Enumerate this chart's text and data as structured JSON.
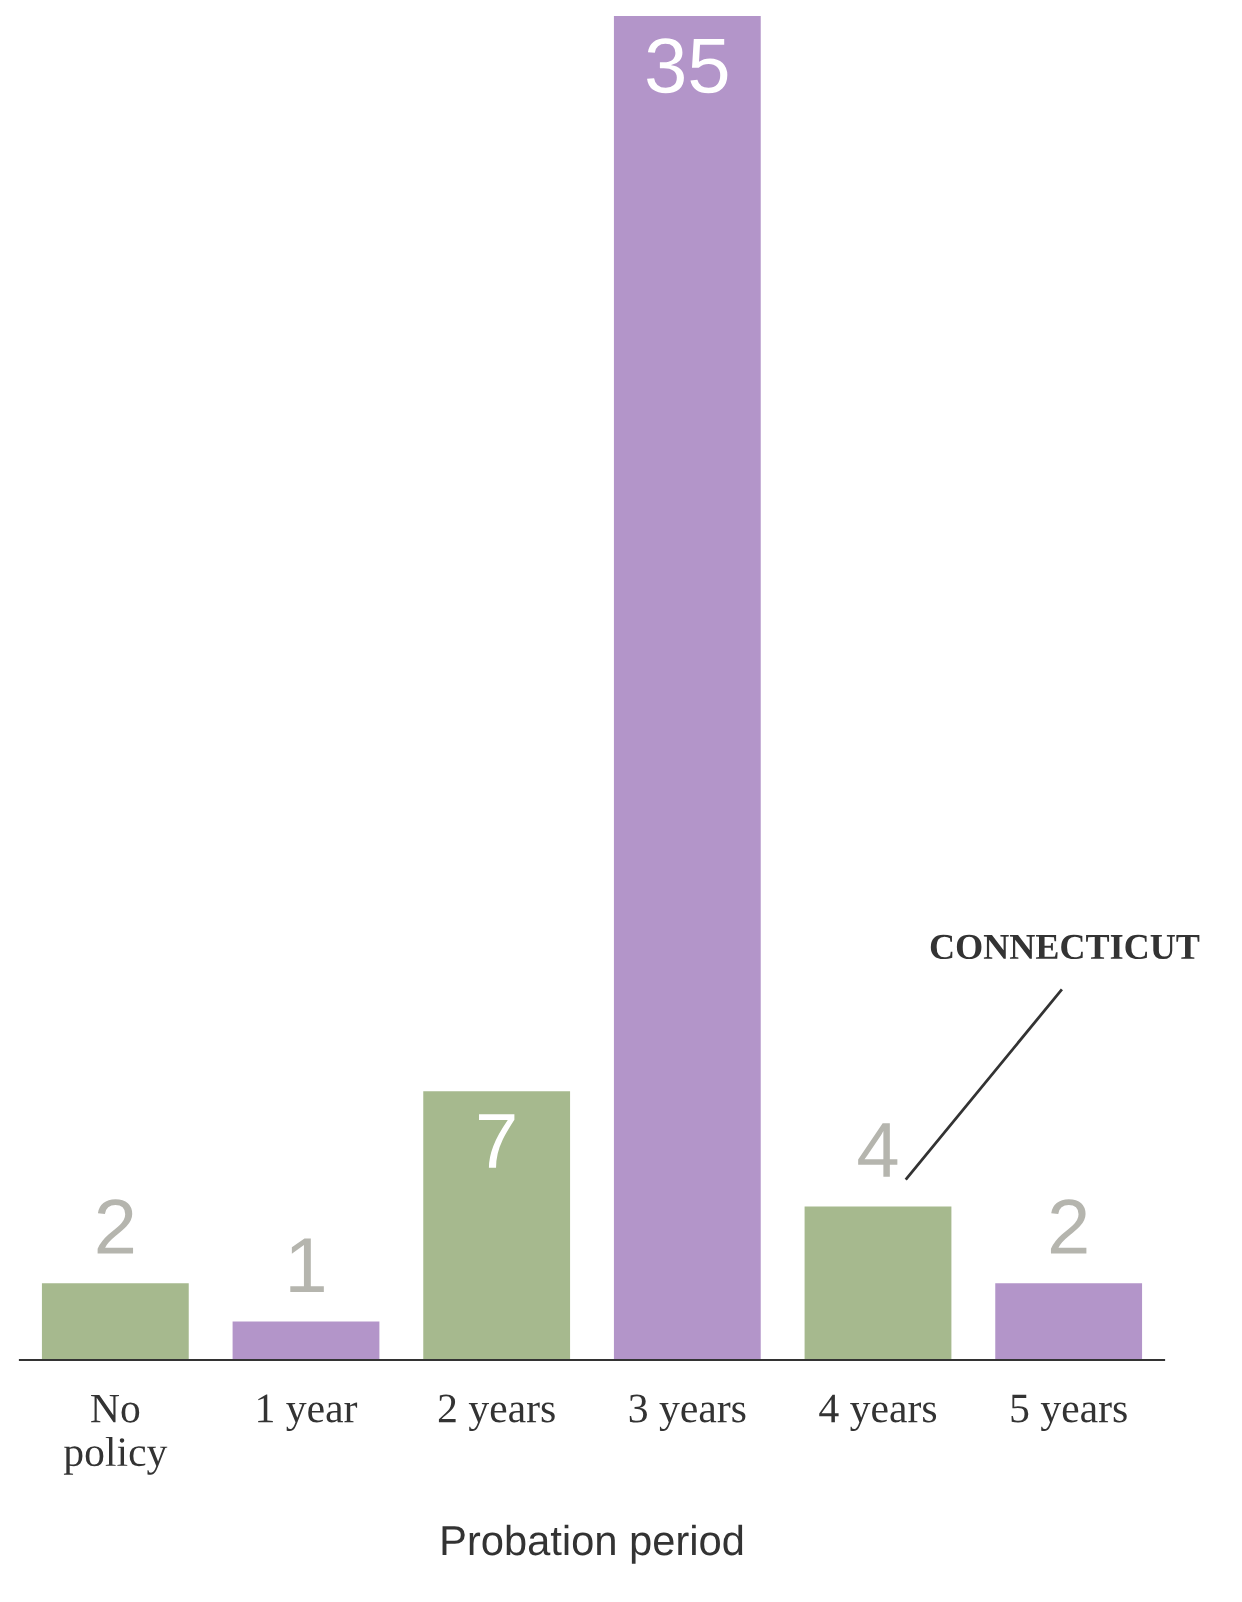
{
  "chart_data": {
    "type": "bar",
    "xlabel": "Probation period",
    "categories": [
      "No\npolicy",
      "1 year",
      "2 years",
      "3 years",
      "4 years",
      "5 years"
    ],
    "values": [
      2,
      1,
      7,
      35,
      4,
      2
    ],
    "colors": [
      "#a6b98e",
      "#b395c9",
      "#a6b98e",
      "#b395c9",
      "#a6b98e",
      "#b395c9"
    ],
    "ylim": [
      0,
      35
    ],
    "data_labels": true,
    "grid": false,
    "legend": false,
    "annotations": [
      "CONNECTICUT"
    ]
  }
}
